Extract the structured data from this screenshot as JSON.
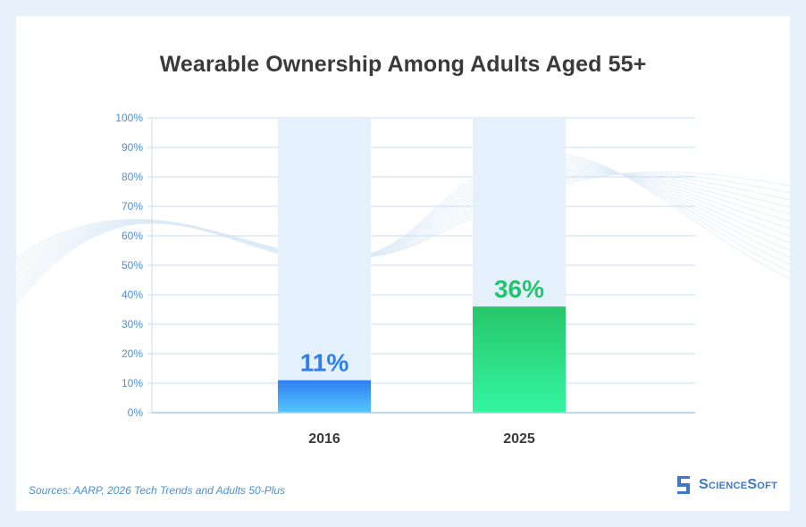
{
  "chart_data": {
    "type": "bar",
    "title": "Wearable Ownership Among Adults Aged 55+",
    "categories": [
      "2016",
      "2025"
    ],
    "values": [
      11,
      36
    ],
    "value_labels": [
      "11%",
      "36%"
    ],
    "bar_colors": [
      "#3a8df0",
      "#2fe89a"
    ],
    "label_colors": [
      "#2f80ed",
      "#22c56e"
    ],
    "ylim": [
      0,
      100
    ],
    "yticks": [
      "0%",
      "10%",
      "20%",
      "30%",
      "40%",
      "50%",
      "60%",
      "70%",
      "80%",
      "90%",
      "100%"
    ],
    "grid": true
  },
  "footer": {
    "source": "Sources: AARP, 2026 Tech Trends and Adults 50-Plus",
    "logo_text": "ScienceSoft"
  },
  "colors": {
    "background": "#e6f1fb",
    "grid": "#c7def2",
    "track": "#e4f0fb",
    "tick_text": "#4a8fd6"
  }
}
